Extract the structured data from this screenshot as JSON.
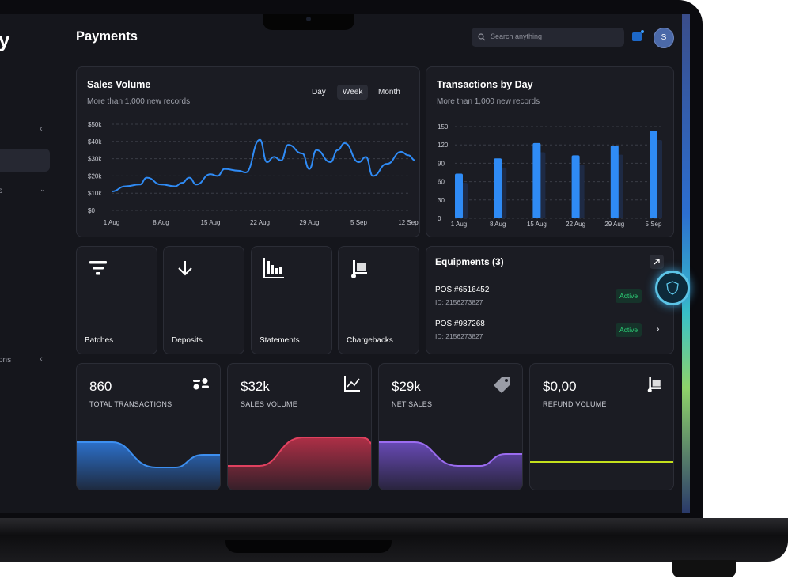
{
  "app": {
    "page_title": "Payments",
    "logo_fragment": "y"
  },
  "header": {
    "search_placeholder": "Search anything",
    "avatar_initial": "S"
  },
  "sidebar": {
    "fragments": [
      {
        "text": "s"
      },
      {
        "text": "ons"
      }
    ]
  },
  "sales_volume": {
    "title": "Sales Volume",
    "subtitle": "More than 1,000 new records",
    "tabs": [
      "Day",
      "Week",
      "Month"
    ],
    "active_tab": "Week"
  },
  "transactions_by_day": {
    "title": "Transactions by Day",
    "subtitle": "More than 1,000 new records"
  },
  "tiles": [
    {
      "label": "Batches",
      "icon": "filter-icon"
    },
    {
      "label": "Deposits",
      "icon": "download-icon"
    },
    {
      "label": "Statements",
      "icon": "bar-chart-icon"
    },
    {
      "label": "Chargebacks",
      "icon": "cart-icon"
    }
  ],
  "equipments": {
    "title": "Equipments (3)",
    "items": [
      {
        "name": "POS #6516452",
        "id": "ID: 2156273827",
        "status": "Active"
      },
      {
        "name": "POS  #987268",
        "id": "ID: 2156273827",
        "status": "Active"
      }
    ]
  },
  "stats": [
    {
      "value": "860",
      "label": "TOTAL TRANSACTIONS",
      "icon": "sliders-icon",
      "color": "#3d8ff0"
    },
    {
      "value": "$32k",
      "label": "SALES VOLUME",
      "icon": "line-chart-icon",
      "color": "#e0415f"
    },
    {
      "value": "$29k",
      "label": "NET SALES",
      "icon": "tag-icon",
      "color": "#9b6cf0"
    },
    {
      "value": "$0,00",
      "label": "REFUND VOLUME",
      "icon": "cart-icon",
      "color": "#c4e01c"
    }
  ],
  "colors": {
    "background": "#15161c",
    "card": "#1b1c23",
    "accent_blue": "#2f8bf5",
    "active_green": "#2ccf77"
  },
  "chart_data": [
    {
      "type": "line",
      "title": "Sales Volume",
      "x_tick_labels": [
        "1 Aug",
        "8 Aug",
        "15 Aug",
        "22 Aug",
        "29 Aug",
        "5 Sep",
        "12 Sep"
      ],
      "y_tick_labels": [
        "$0",
        "$10k",
        "$20k",
        "$30k",
        "$40k",
        "$50k"
      ],
      "ylim": [
        0,
        50000
      ],
      "x": [
        "1 Aug",
        "3 Aug",
        "5 Aug",
        "6 Aug",
        "8 Aug",
        "10 Aug",
        "11 Aug",
        "12 Aug",
        "13 Aug",
        "15 Aug",
        "16 Aug",
        "17 Aug",
        "19 Aug",
        "20 Aug",
        "22 Aug",
        "23 Aug",
        "24 Aug",
        "25 Aug",
        "26 Aug",
        "28 Aug",
        "29 Aug",
        "30 Aug",
        "1 Sep",
        "2 Sep",
        "3 Sep",
        "5 Sep",
        "6 Sep",
        "7 Sep",
        "9 Sep",
        "11 Sep",
        "12 Sep",
        "13 Sep"
      ],
      "values": [
        11000,
        14000,
        15000,
        19000,
        15000,
        14000,
        16000,
        19000,
        15000,
        21000,
        20000,
        24000,
        23000,
        22000,
        41000,
        28000,
        31000,
        29000,
        38000,
        33000,
        24000,
        35000,
        28000,
        35000,
        39000,
        28000,
        31000,
        20000,
        27000,
        34000,
        32000,
        29000
      ],
      "grid": true
    },
    {
      "type": "bar",
      "title": "Transactions by Day",
      "categories": [
        "1 Aug",
        "8 Aug",
        "15 Aug",
        "22 Aug",
        "29 Aug",
        "5 Sep"
      ],
      "ylim": [
        0,
        150
      ],
      "y_tick_labels": [
        "0",
        "30",
        "60",
        "90",
        "120",
        "150"
      ],
      "series": [
        {
          "values": [
            73,
            98,
            123,
            103,
            119,
            143
          ]
        },
        {
          "values": [
            58,
            83,
            108,
            88,
            104,
            128
          ]
        }
      ],
      "grid": true
    }
  ]
}
